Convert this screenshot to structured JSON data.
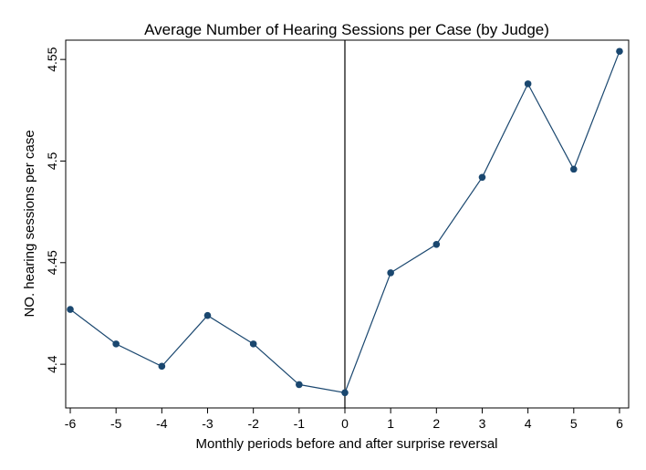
{
  "chart_data": {
    "type": "line",
    "title": "Average Number of Hearing Sessions per Case (by Judge)",
    "xlabel": "Monthly periods before and after surprise reversal",
    "ylabel": "NO. hearing sessions per case",
    "x": [
      -6,
      -5,
      -4,
      -3,
      -2,
      -1,
      0,
      1,
      2,
      3,
      4,
      5,
      6
    ],
    "values": [
      4.427,
      4.41,
      4.399,
      4.424,
      4.41,
      4.39,
      4.386,
      4.445,
      4.459,
      4.492,
      4.538,
      4.496,
      4.554
    ],
    "xlim": [
      -6.1,
      6.2
    ],
    "ylim": [
      4.3785,
      4.5595
    ],
    "xticks": [
      -6,
      -5,
      -4,
      -3,
      -2,
      -1,
      0,
      1,
      2,
      3,
      4,
      5,
      6
    ],
    "xtick_labels": [
      "-6",
      "-5",
      "-4",
      "-3",
      "-2",
      "-1",
      "0",
      "1",
      "2",
      "3",
      "4",
      "5",
      "6"
    ],
    "yticks": [
      4.4,
      4.45,
      4.5,
      4.55
    ],
    "ytick_labels": [
      "4.4",
      "4.45",
      "4.5",
      "4.55"
    ],
    "reference_line_x": 0,
    "grid": false,
    "legend": "none",
    "series_color": "#1a476f"
  }
}
